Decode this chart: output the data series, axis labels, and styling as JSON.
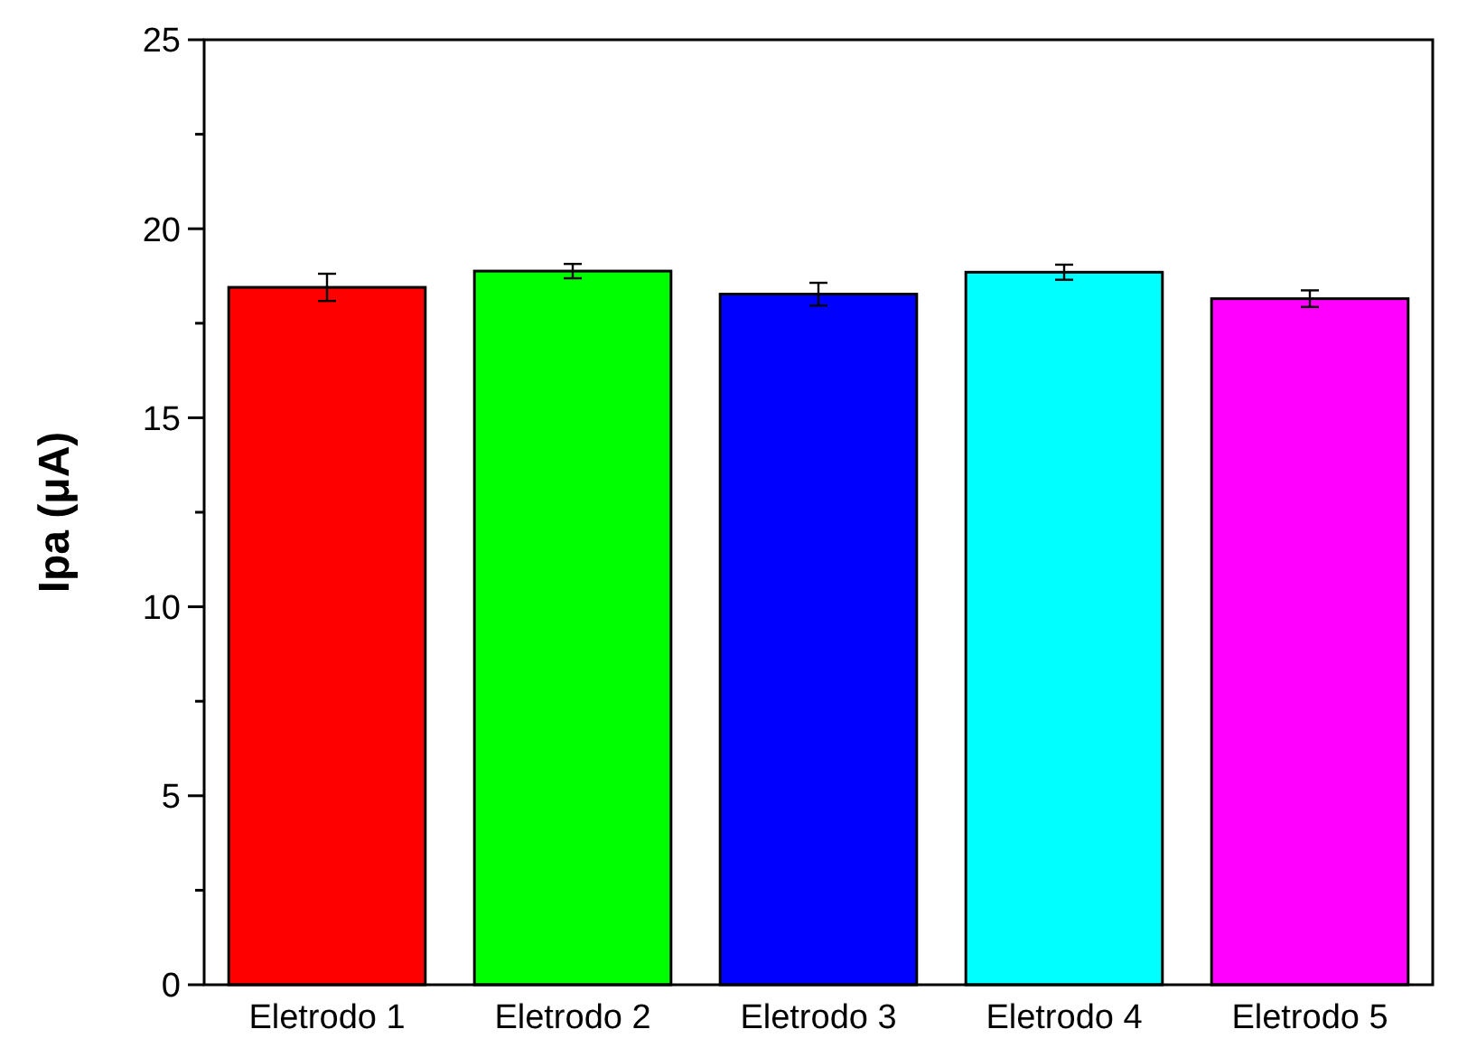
{
  "chart_data": {
    "type": "bar",
    "ylabel": "Ipa (μA)",
    "categories": [
      "Eletrodo 1",
      "Eletrodo 2",
      "Eletrodo 3",
      "Eletrodo 4",
      "Eletrodo 5"
    ],
    "values": [
      18.45,
      18.88,
      18.27,
      18.85,
      18.15
    ],
    "errors": [
      0.36,
      0.19,
      0.3,
      0.2,
      0.22
    ],
    "colors": [
      "#ff0000",
      "#00ff00",
      "#0000ff",
      "#00ffff",
      "#ff00ff"
    ],
    "ylim": [
      0,
      25
    ],
    "yticks": [
      0,
      {
        "value": 2.5,
        "label": null
      },
      5,
      {
        "value": 7.5,
        "label": null
      },
      10,
      {
        "value": 12.5,
        "label": null
      },
      15,
      {
        "value": 17.5,
        "label": null
      },
      20,
      {
        "value": 22.5,
        "label": null
      },
      25
    ]
  }
}
